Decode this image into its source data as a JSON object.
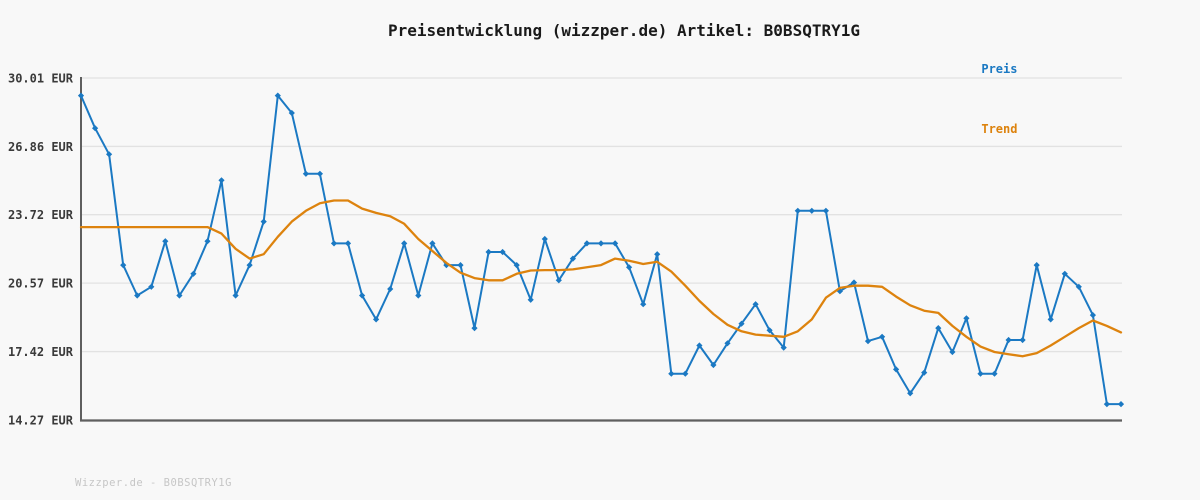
{
  "title": "Preisentwicklung (wizzper.de) Artikel: B0BSQTRY1G",
  "footer": "Wizzper.de - B0BSQTRY1G",
  "legend": {
    "preis_label": "Preis",
    "trend_label": "Trend"
  },
  "colors": {
    "background": "#f8f8f8",
    "grid": "#e2e2e2",
    "axis": "#5f5f5f",
    "tick_label": "#3a3a3a",
    "price_blue": "#1b79c3",
    "trend_orange": "#dd830e"
  },
  "chart_data": {
    "type": "line",
    "title": "Preisentwicklung (wizzper.de) Artikel: B0BSQTRY1G",
    "xlabel": "",
    "ylabel": "",
    "x_tick_labels_visible": false,
    "grid": "horizontal",
    "legend_position": "top-right",
    "ylim": [
      14.27,
      30.01
    ],
    "y_axis": {
      "unit": "EUR",
      "tick_labels": [
        "30.01 EUR",
        "26.86 EUR",
        "23.72 EUR",
        "20.57 EUR",
        "17.42 EUR",
        "14.27 EUR"
      ],
      "tick_values": [
        30.01,
        26.86,
        23.72,
        20.57,
        17.42,
        14.27
      ]
    },
    "series": [
      {
        "name": "Preis",
        "color": "#1b79c3",
        "marker": "diamond",
        "values": [
          29.2,
          27.7,
          26.5,
          21.4,
          20.0,
          20.4,
          22.5,
          20.0,
          21.0,
          22.5,
          25.3,
          20.0,
          21.4,
          23.4,
          29.2,
          28.4,
          25.6,
          25.6,
          22.4,
          22.4,
          20.0,
          18.9,
          20.3,
          22.4,
          20.0,
          22.4,
          21.4,
          21.4,
          18.5,
          22.0,
          22.0,
          21.4,
          19.8,
          22.6,
          20.7,
          21.7,
          22.4,
          22.4,
          22.4,
          21.3,
          19.6,
          21.9,
          16.4,
          16.4,
          17.7,
          16.8,
          17.8,
          18.7,
          19.6,
          18.4,
          17.6,
          23.9,
          23.9,
          23.9,
          20.2,
          20.6,
          17.9,
          18.1,
          16.6,
          15.5,
          16.45,
          18.5,
          17.4,
          18.95,
          16.4,
          16.4,
          17.95,
          17.95,
          21.4,
          18.9,
          21.0,
          20.4,
          19.1,
          15.0,
          15.0
        ]
      },
      {
        "name": "Trend",
        "color": "#dd830e",
        "marker": "none",
        "values": [
          23.15,
          23.15,
          23.15,
          23.15,
          23.15,
          23.15,
          23.15,
          23.15,
          23.15,
          23.15,
          22.85,
          22.15,
          21.7,
          21.9,
          22.7,
          23.4,
          23.9,
          24.25,
          24.37,
          24.37,
          24.0,
          23.8,
          23.65,
          23.3,
          22.6,
          22.05,
          21.5,
          21.05,
          20.8,
          20.7,
          20.7,
          21.0,
          21.15,
          21.17,
          21.17,
          21.2,
          21.3,
          21.4,
          21.7,
          21.6,
          21.45,
          21.55,
          21.1,
          20.45,
          19.75,
          19.15,
          18.65,
          18.35,
          18.2,
          18.15,
          18.1,
          18.35,
          18.9,
          19.9,
          20.35,
          20.45,
          20.45,
          20.4,
          19.95,
          19.55,
          19.3,
          19.2,
          18.6,
          18.1,
          17.65,
          17.4,
          17.3,
          17.2,
          17.35,
          17.7,
          18.1,
          18.5,
          18.85,
          18.6,
          18.3
        ]
      }
    ]
  }
}
